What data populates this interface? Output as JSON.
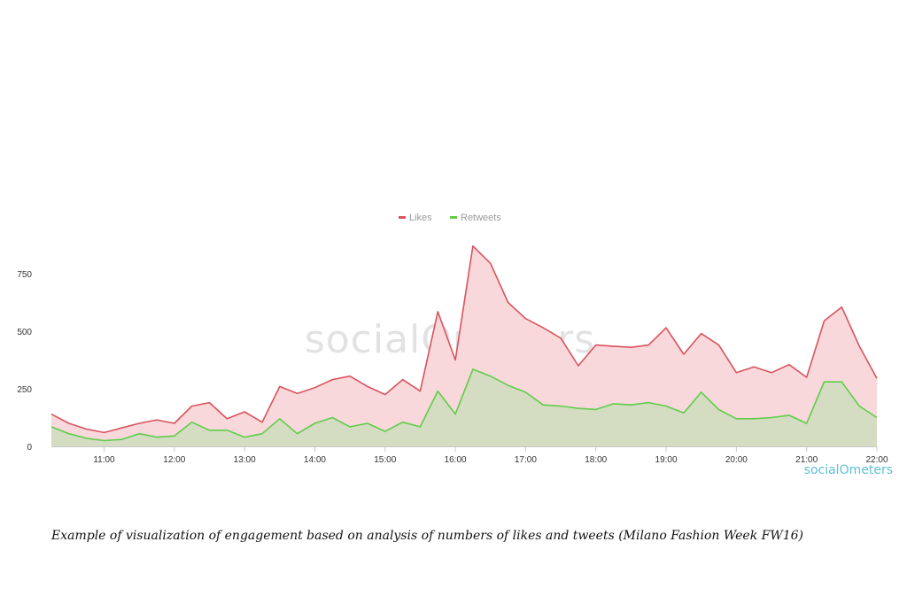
{
  "chart_data": {
    "type": "area",
    "x": [
      "10:15",
      "10:30",
      "10:45",
      "11:00",
      "11:15",
      "11:30",
      "11:45",
      "12:00",
      "12:15",
      "12:30",
      "12:45",
      "13:00",
      "13:15",
      "13:30",
      "13:45",
      "14:00",
      "14:15",
      "14:30",
      "14:45",
      "15:00",
      "15:15",
      "15:30",
      "15:45",
      "16:00",
      "16:15",
      "16:30",
      "16:45",
      "17:00",
      "17:15",
      "17:30",
      "17:45",
      "18:00",
      "18:15",
      "18:30",
      "18:45",
      "19:00",
      "19:15",
      "19:30",
      "19:45",
      "20:00",
      "20:15",
      "20:30",
      "20:45",
      "21:00",
      "21:15",
      "21:30",
      "21:45",
      "22:00"
    ],
    "x_ticks": [
      "11:00",
      "12:00",
      "13:00",
      "14:00",
      "15:00",
      "16:00",
      "17:00",
      "18:00",
      "19:00",
      "20:00",
      "21:00",
      "22:00"
    ],
    "y_ticks": [
      0,
      250,
      500,
      750
    ],
    "ylim": [
      0,
      900
    ],
    "grid": false,
    "legend_position": "top-center",
    "series": [
      {
        "name": "Likes",
        "color": "#d9535d",
        "fill": "#f8d8db",
        "values": [
          140,
          100,
          75,
          60,
          80,
          100,
          115,
          100,
          175,
          190,
          120,
          150,
          105,
          260,
          230,
          255,
          290,
          305,
          260,
          225,
          290,
          240,
          585,
          375,
          870,
          795,
          625,
          555,
          515,
          470,
          350,
          440,
          435,
          430,
          440,
          515,
          400,
          490,
          440,
          320,
          345,
          320,
          355,
          300,
          545,
          605,
          435,
          295
        ]
      },
      {
        "name": "Retweets",
        "color": "#5fcd4a",
        "fill": "#d4dcc1",
        "values": [
          85,
          55,
          35,
          25,
          30,
          55,
          40,
          45,
          105,
          70,
          70,
          40,
          55,
          120,
          55,
          100,
          125,
          85,
          100,
          65,
          105,
          85,
          240,
          140,
          335,
          305,
          265,
          235,
          180,
          175,
          165,
          160,
          185,
          180,
          190,
          175,
          145,
          235,
          160,
          120,
          120,
          125,
          135,
          100,
          280,
          280,
          175,
          125
        ]
      }
    ]
  },
  "watermark": "socialOmeters",
  "brand_logo": "socialOmeters",
  "caption": "Example of visualization of engagement based on analysis of numbers of likes and tweets (Milano Fashion Week FW16)"
}
